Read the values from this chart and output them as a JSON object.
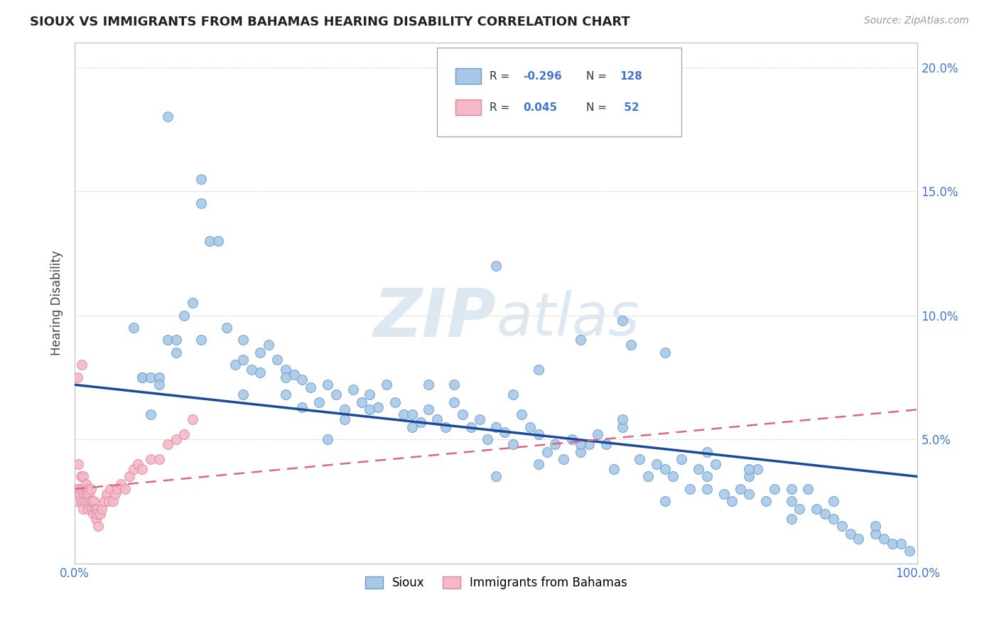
{
  "title": "SIOUX VS IMMIGRANTS FROM BAHAMAS HEARING DISABILITY CORRELATION CHART",
  "source": "Source: ZipAtlas.com",
  "ylabel": "Hearing Disability",
  "xlim": [
    0,
    1.0
  ],
  "ylim": [
    0,
    0.21
  ],
  "yticks": [
    0.0,
    0.05,
    0.1,
    0.15,
    0.2
  ],
  "sioux_color": "#a8c8e8",
  "sioux_edge": "#6699cc",
  "bahamas_color": "#f4b8c8",
  "bahamas_edge": "#dd8899",
  "line_sioux_color": "#1a4a9a",
  "line_bahamas_color": "#dd6688",
  "watermark_color": "#dde8f0",
  "grid_color": "#dddddd",
  "title_color": "#222222",
  "axis_color": "#4477cc",
  "sioux_x": [
    0.11,
    0.15,
    0.15,
    0.16,
    0.17,
    0.07,
    0.08,
    0.08,
    0.09,
    0.09,
    0.1,
    0.1,
    0.11,
    0.12,
    0.12,
    0.13,
    0.14,
    0.18,
    0.19,
    0.2,
    0.2,
    0.21,
    0.22,
    0.22,
    0.23,
    0.24,
    0.25,
    0.25,
    0.26,
    0.27,
    0.27,
    0.28,
    0.29,
    0.3,
    0.31,
    0.32,
    0.33,
    0.34,
    0.35,
    0.36,
    0.37,
    0.38,
    0.39,
    0.4,
    0.41,
    0.42,
    0.43,
    0.44,
    0.45,
    0.46,
    0.47,
    0.48,
    0.49,
    0.5,
    0.51,
    0.52,
    0.53,
    0.54,
    0.55,
    0.56,
    0.57,
    0.58,
    0.59,
    0.6,
    0.61,
    0.62,
    0.63,
    0.64,
    0.65,
    0.66,
    0.67,
    0.68,
    0.69,
    0.7,
    0.71,
    0.72,
    0.73,
    0.74,
    0.75,
    0.76,
    0.77,
    0.78,
    0.79,
    0.8,
    0.81,
    0.82,
    0.83,
    0.85,
    0.86,
    0.87,
    0.88,
    0.89,
    0.9,
    0.91,
    0.92,
    0.93,
    0.95,
    0.96,
    0.97,
    0.98,
    0.99,
    0.5,
    0.55,
    0.6,
    0.65,
    0.7,
    0.75,
    0.8,
    0.85,
    0.4,
    0.45,
    0.3,
    0.35,
    0.2,
    0.25,
    0.15,
    0.5,
    0.6,
    0.7,
    0.8,
    0.9,
    0.55,
    0.65,
    0.75,
    0.85,
    0.95,
    0.52,
    0.42,
    0.32
  ],
  "sioux_y": [
    0.18,
    0.155,
    0.145,
    0.13,
    0.13,
    0.095,
    0.075,
    0.075,
    0.075,
    0.06,
    0.075,
    0.072,
    0.09,
    0.09,
    0.085,
    0.1,
    0.105,
    0.095,
    0.08,
    0.09,
    0.082,
    0.078,
    0.085,
    0.077,
    0.088,
    0.082,
    0.078,
    0.068,
    0.076,
    0.074,
    0.063,
    0.071,
    0.065,
    0.072,
    0.068,
    0.062,
    0.07,
    0.065,
    0.068,
    0.063,
    0.072,
    0.065,
    0.06,
    0.06,
    0.057,
    0.062,
    0.058,
    0.055,
    0.072,
    0.06,
    0.055,
    0.058,
    0.05,
    0.055,
    0.053,
    0.048,
    0.06,
    0.055,
    0.052,
    0.045,
    0.048,
    0.042,
    0.05,
    0.045,
    0.048,
    0.052,
    0.048,
    0.038,
    0.098,
    0.088,
    0.042,
    0.035,
    0.04,
    0.038,
    0.035,
    0.042,
    0.03,
    0.038,
    0.035,
    0.04,
    0.028,
    0.025,
    0.03,
    0.028,
    0.038,
    0.025,
    0.03,
    0.025,
    0.022,
    0.03,
    0.022,
    0.02,
    0.018,
    0.015,
    0.012,
    0.01,
    0.012,
    0.01,
    0.008,
    0.008,
    0.005,
    0.035,
    0.04,
    0.048,
    0.055,
    0.025,
    0.03,
    0.035,
    0.018,
    0.055,
    0.065,
    0.05,
    0.062,
    0.068,
    0.075,
    0.09,
    0.12,
    0.09,
    0.085,
    0.038,
    0.025,
    0.078,
    0.058,
    0.045,
    0.03,
    0.015,
    0.068,
    0.072,
    0.058
  ],
  "bahamas_x": [
    0.002,
    0.003,
    0.005,
    0.006,
    0.007,
    0.008,
    0.009,
    0.01,
    0.01,
    0.011,
    0.012,
    0.013,
    0.014,
    0.015,
    0.015,
    0.016,
    0.017,
    0.018,
    0.019,
    0.02,
    0.021,
    0.022,
    0.023,
    0.024,
    0.025,
    0.026,
    0.027,
    0.028,
    0.03,
    0.032,
    0.035,
    0.038,
    0.04,
    0.042,
    0.045,
    0.048,
    0.05,
    0.055,
    0.06,
    0.065,
    0.07,
    0.075,
    0.08,
    0.09,
    0.1,
    0.11,
    0.12,
    0.13,
    0.14,
    0.003,
    0.004,
    0.008
  ],
  "bahamas_y": [
    0.025,
    0.03,
    0.03,
    0.028,
    0.035,
    0.025,
    0.03,
    0.022,
    0.035,
    0.028,
    0.025,
    0.032,
    0.028,
    0.025,
    0.03,
    0.022,
    0.028,
    0.025,
    0.03,
    0.022,
    0.025,
    0.02,
    0.025,
    0.022,
    0.018,
    0.022,
    0.02,
    0.015,
    0.02,
    0.022,
    0.025,
    0.028,
    0.025,
    0.03,
    0.025,
    0.028,
    0.03,
    0.032,
    0.03,
    0.035,
    0.038,
    0.04,
    0.038,
    0.042,
    0.042,
    0.048,
    0.05,
    0.052,
    0.058,
    0.075,
    0.04,
    0.08
  ],
  "sioux_line_x0": 0.0,
  "sioux_line_y0": 0.072,
  "sioux_line_x1": 1.0,
  "sioux_line_y1": 0.035,
  "bahamas_line_x0": 0.0,
  "bahamas_line_y0": 0.03,
  "bahamas_line_x1": 1.0,
  "bahamas_line_y1": 0.062
}
